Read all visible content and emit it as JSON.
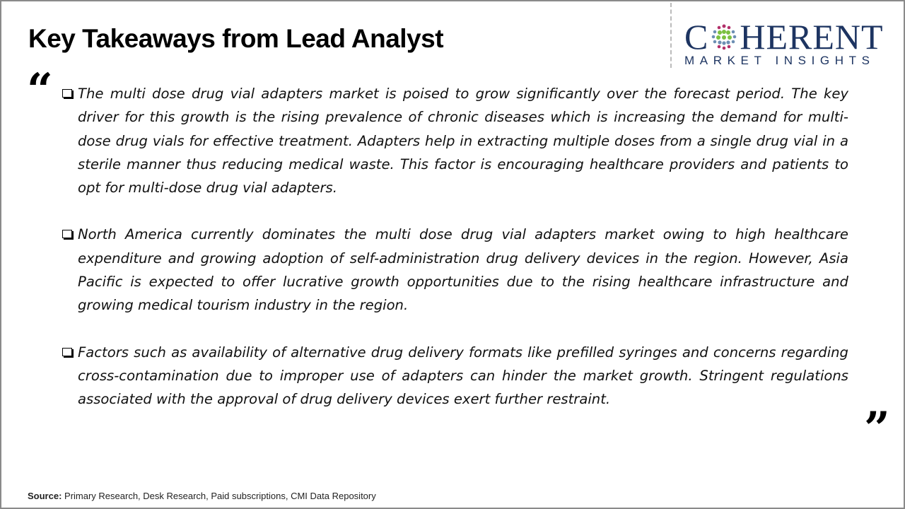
{
  "title": "Key Takeaways from Lead Analyst",
  "logo": {
    "line1": "COHERENT",
    "line2": "MARKET INSIGHTS",
    "brand_color": "#1d3461"
  },
  "quote_open": "“",
  "quote_close": "”",
  "bullets": [
    "The multi dose drug vial adapters market is poised to grow significantly over the forecast period. The key driver for this growth is the rising prevalence of chronic diseases which is increasing the demand for multi-dose drug vials for effective treatment. Adapters help in extracting multiple doses from a single drug vial in a sterile manner thus reducing medical waste. This factor is encouraging healthcare providers and patients to opt for multi-dose drug vial adapters.",
    "North America currently dominates the multi dose drug vial adapters market owing to high healthcare expenditure and growing adoption of self-administration drug delivery devices in the region. However, Asia Pacific is expected to offer lucrative growth opportunities due to the rising healthcare infrastructure and growing medical tourism industry in the region.",
    "Factors such as availability of alternative drug delivery formats like prefilled syringes and concerns regarding cross-contamination due to improper use of adapters can hinder the market growth. Stringent regulations associated with the approval of drug delivery devices exert further restraint."
  ],
  "source": {
    "label": "Source:",
    "text": "Primary Research, Desk Research, Paid subscriptions, CMI Data Repository"
  }
}
